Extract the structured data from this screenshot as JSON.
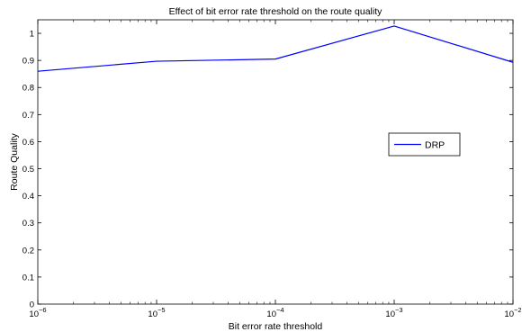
{
  "chart_data": {
    "type": "line",
    "title": "Effect of bit error rate threshold on the route quality",
    "xlabel": "Bit error rate threshold",
    "ylabel": "Route Quality",
    "xscale": "log",
    "xlim": [
      1e-06,
      0.01
    ],
    "ylim": [
      0,
      1.05
    ],
    "xticks": [
      {
        "base": "10",
        "exp": "−6"
      },
      {
        "base": "10",
        "exp": "−5"
      },
      {
        "base": "10",
        "exp": "−4"
      },
      {
        "base": "10",
        "exp": "−3"
      },
      {
        "base": "10",
        "exp": "−2"
      }
    ],
    "xtick_values": [
      1e-06,
      1e-05,
      0.0001,
      0.001,
      0.01
    ],
    "yticks": [
      "0",
      "0.1",
      "0.2",
      "0.3",
      "0.4",
      "0.5",
      "0.6",
      "0.7",
      "0.8",
      "0.9",
      "1"
    ],
    "ytick_values": [
      0,
      0.1,
      0.2,
      0.3,
      0.4,
      0.5,
      0.6,
      0.7,
      0.8,
      0.9,
      1
    ],
    "grid": false,
    "legend_position": "right-middle",
    "series": [
      {
        "name": "DRP",
        "color": "#0000ff",
        "x": [
          1e-06,
          1e-05,
          0.0001,
          0.001,
          0.01
        ],
        "y": [
          0.86,
          0.897,
          0.905,
          1.027,
          0.893
        ]
      }
    ]
  }
}
